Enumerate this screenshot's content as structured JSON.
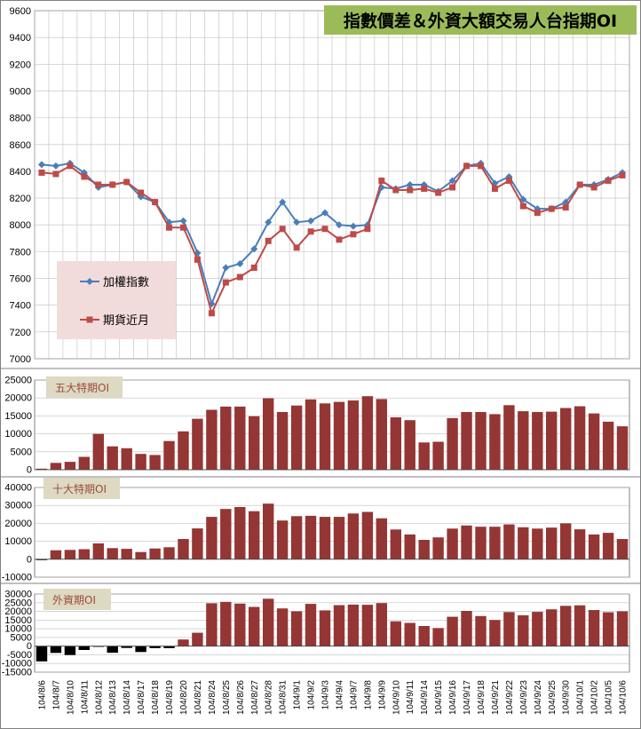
{
  "title": "指數價差＆外資大額交易人台指期OI",
  "colors": {
    "index_line": "#4a7ebb",
    "futures_line": "#be4b48",
    "bar_red": "#943634",
    "bar_black": "#000000",
    "title_bg": "#9bbb59",
    "legend_bg": "#f2dcdb",
    "label_bg": "#ddd9c3",
    "grid": "#bfbfbf"
  },
  "chart_data": [
    {
      "type": "line",
      "name": "price",
      "ylim": [
        7000,
        9600
      ],
      "yticks": [
        7000,
        7200,
        7400,
        7600,
        7800,
        8000,
        8200,
        8400,
        8600,
        8800,
        9000,
        9200,
        9400,
        9600
      ],
      "grid": true,
      "legend": "left",
      "series": [
        {
          "name": "加權指數",
          "marker": "diamond",
          "values": [
            8450,
            8440,
            8460,
            8390,
            8280,
            8300,
            8320,
            8210,
            8170,
            8020,
            8030,
            7790,
            7410,
            7680,
            7710,
            7820,
            8020,
            8170,
            8020,
            8030,
            8090,
            8000,
            7990,
            8000,
            8280,
            8270,
            8300,
            8300,
            8250,
            8330,
            8440,
            8460,
            8310,
            8360,
            8190,
            8120,
            8120,
            8170,
            8300,
            8300,
            8340,
            8390
          ]
        },
        {
          "name": "期貨近月",
          "marker": "square",
          "values": [
            8390,
            8380,
            8440,
            8360,
            8300,
            8300,
            8320,
            8240,
            8170,
            7980,
            7980,
            7740,
            7340,
            7570,
            7610,
            7680,
            7880,
            7970,
            7830,
            7950,
            7970,
            7890,
            7930,
            7970,
            8330,
            8260,
            8260,
            8270,
            8240,
            8280,
            8440,
            8440,
            8270,
            8330,
            8140,
            8090,
            8120,
            8130,
            8300,
            8280,
            8330,
            8370
          ]
        }
      ]
    },
    {
      "type": "bar",
      "name": "top5",
      "label": "五大特期OI",
      "ylim": [
        0,
        25000
      ],
      "yticks": [
        0,
        5000,
        10000,
        15000,
        20000,
        25000
      ],
      "values": [
        300,
        1900,
        2200,
        3600,
        10000,
        6500,
        6000,
        4400,
        4100,
        8000,
        10700,
        14200,
        16700,
        17600,
        17600,
        14900,
        19900,
        16100,
        17900,
        19600,
        18500,
        18900,
        19300,
        20500,
        19700,
        14600,
        13800,
        7600,
        7800,
        14400,
        16100,
        16100,
        15500,
        18000,
        16300,
        16100,
        16200,
        17200,
        17700,
        15700,
        13400,
        12100
      ]
    },
    {
      "type": "bar",
      "name": "top10",
      "label": "十大特期OI",
      "ylim": [
        -10000,
        40000
      ],
      "yticks": [
        -10000,
        0,
        10000,
        20000,
        30000,
        40000
      ],
      "values": [
        -500,
        5000,
        5200,
        5600,
        8800,
        6200,
        5800,
        4000,
        6000,
        6700,
        11300,
        17200,
        23600,
        28000,
        29100,
        26800,
        31000,
        21600,
        24000,
        24200,
        23600,
        23600,
        25500,
        26400,
        22800,
        16600,
        13800,
        10800,
        12200,
        17100,
        18800,
        18100,
        18100,
        19400,
        17800,
        17100,
        17600,
        20000,
        16700,
        13800,
        14700,
        11300
      ]
    },
    {
      "type": "bar",
      "name": "foreign",
      "label": "外資期OI",
      "ylim": [
        -15000,
        30000
      ],
      "yticks": [
        -15000,
        -10000,
        -5000,
        0,
        5000,
        10000,
        15000,
        20000,
        25000,
        30000
      ],
      "values": [
        -8800,
        -3900,
        -5100,
        -2200,
        -400,
        -3800,
        -1000,
        -3400,
        -1100,
        -1100,
        3800,
        7700,
        24700,
        25500,
        24500,
        22600,
        27300,
        21700,
        20100,
        24300,
        20600,
        23600,
        23900,
        23800,
        24800,
        14300,
        13400,
        11600,
        10400,
        16900,
        20300,
        17300,
        15000,
        19600,
        17800,
        19700,
        21200,
        23200,
        23500,
        20800,
        19500,
        20100
      ]
    }
  ],
  "x_labels": [
    "104/8/6",
    "104/8/7",
    "104/8/10",
    "104/8/11",
    "104/8/12",
    "104/8/13",
    "104/8/14",
    "104/8/17",
    "104/8/18",
    "104/8/19",
    "104/8/20",
    "104/8/21",
    "104/8/24",
    "104/8/25",
    "104/8/26",
    "104/8/27",
    "104/8/28",
    "104/8/31",
    "104/9/1",
    "104/9/2",
    "104/9/3",
    "104/9/4",
    "104/9/7",
    "104/9/8",
    "104/9/9",
    "104/9/10",
    "104/9/11",
    "104/9/14",
    "104/9/15",
    "104/9/16",
    "104/9/17",
    "104/9/18",
    "104/9/21",
    "104/9/22",
    "104/9/23",
    "104/9/24",
    "104/9/25",
    "104/9/30",
    "104/10/1",
    "104/10/2",
    "104/10/5",
    "104/10/6"
  ]
}
